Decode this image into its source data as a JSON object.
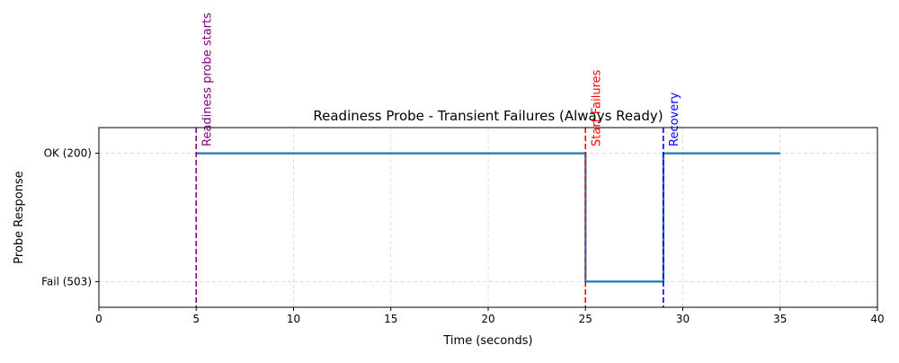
{
  "chart_data": {
    "type": "line",
    "title": "Readiness Probe - Transient Failures (Always Ready)",
    "xlabel": "Time (seconds)",
    "ylabel": "Probe Response",
    "xlim": [
      0,
      40
    ],
    "ylim": [
      -0.2,
      1.2
    ],
    "x_ticks": [
      0,
      5,
      10,
      15,
      20,
      25,
      30,
      35,
      40
    ],
    "y_ticks": [
      {
        "value": 1,
        "label": "OK (200)"
      },
      {
        "value": 0,
        "label": "Fail (503)"
      }
    ],
    "grid": true,
    "line_style": "step",
    "series": [
      {
        "color": "#1f77b4",
        "x": [
          5,
          25,
          25,
          29,
          29,
          35
        ],
        "y": [
          1,
          1,
          0,
          0,
          1,
          1
        ]
      }
    ],
    "annotations": [
      {
        "x": 5,
        "label": "Readiness probe starts",
        "color": "#800080"
      },
      {
        "x": 25,
        "label": "Start Failures",
        "color": "#ff0000"
      },
      {
        "x": 29,
        "label": "Recovery",
        "color": "#0000ff"
      }
    ]
  }
}
